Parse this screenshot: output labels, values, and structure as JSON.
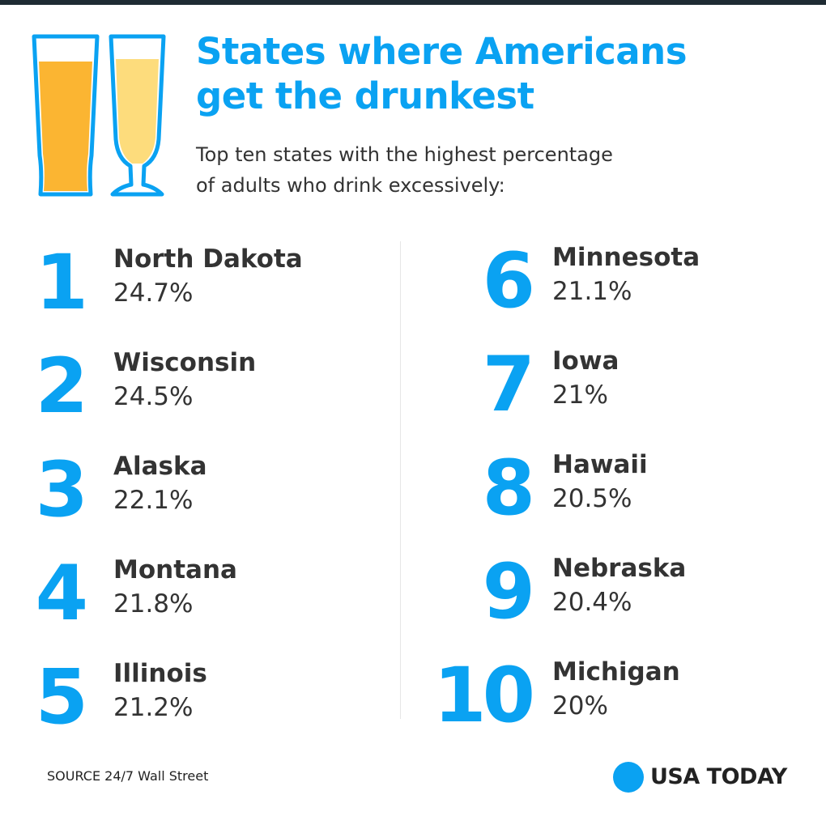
{
  "title": {
    "line1": "States where Americans",
    "line2": "get the drunkest"
  },
  "subtitle": {
    "line1": "Top ten states with the highest percentage",
    "line2": "of adults who drink excessively:"
  },
  "chart_data": {
    "type": "table",
    "title": "States where Americans get the drunkest",
    "subtitle": "Top ten states with the highest percentage of adults who drink excessively:",
    "unit": "%",
    "rows": [
      {
        "rank": "1",
        "state": "North Dakota",
        "label": "24.7%",
        "value": 24.7
      },
      {
        "rank": "2",
        "state": "Wisconsin",
        "label": "24.5%",
        "value": 24.5
      },
      {
        "rank": "3",
        "state": "Alaska",
        "label": "22.1%",
        "value": 22.1
      },
      {
        "rank": "4",
        "state": "Montana",
        "label": "21.8%",
        "value": 21.8
      },
      {
        "rank": "5",
        "state": "Illinois",
        "label": "21.2%",
        "value": 21.2
      },
      {
        "rank": "6",
        "state": "Minnesota",
        "label": "21.1%",
        "value": 21.1
      },
      {
        "rank": "7",
        "state": "Iowa",
        "label": "21%",
        "value": 21
      },
      {
        "rank": "8",
        "state": "Hawaii",
        "label": "20.5%",
        "value": 20.5
      },
      {
        "rank": "9",
        "state": "Nebraska",
        "label": "20.4%",
        "value": 20.4
      },
      {
        "rank": "10",
        "state": "Michigan",
        "label": "20%",
        "value": 20
      }
    ]
  },
  "footer": {
    "source": "SOURCE 24/7 Wall Street",
    "logo": "USA TODAY"
  },
  "colors": {
    "accent": "#0aa2f2",
    "text": "#333333",
    "beer_dark": "#fbb532",
    "beer_light": "#fddc7c"
  },
  "icons": [
    "pilsner-glass-icon",
    "pilsner-stem-glass-icon",
    "usa-today-logo-dot"
  ]
}
